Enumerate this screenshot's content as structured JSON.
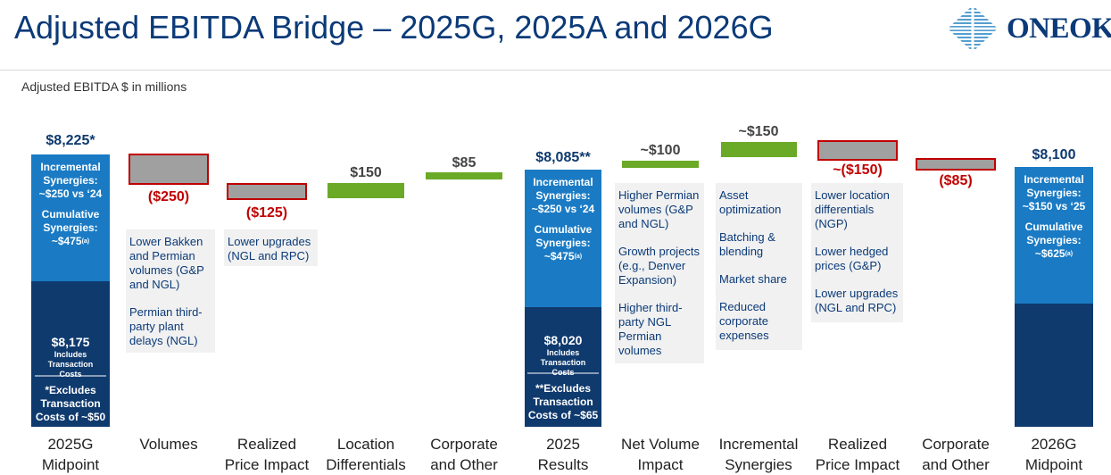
{
  "header": {
    "title": "Adjusted EBITDA Bridge – 2025G, 2025A and 2026G",
    "logo_text": "ONEOK",
    "subtitle": "Adjusted EBITDA $ in millions"
  },
  "colors": {
    "navy": "#0f3a6e",
    "blue": "#1a7bc4",
    "green": "#6aaa26",
    "gray": "#a0a0a0",
    "red": "#c00000",
    "note_bg": "#f1f1f1"
  },
  "chart_data": {
    "type": "waterfall",
    "categories": [
      "2025G Midpoint",
      "Volumes",
      "Realized Price Impact",
      "Location Differentials",
      "Corporate and Other",
      "2025 Results",
      "Net Volume Impact",
      "Incremental Synergies",
      "Realized Price Impact",
      "Corporate and Other",
      "2026G Midpoint"
    ],
    "values": [
      8225,
      -250,
      -125,
      150,
      85,
      8085,
      100,
      150,
      -150,
      -85,
      8100
    ],
    "value_labels": [
      "$8,225*",
      "($250)",
      "($125)",
      "$150",
      "$85",
      "$8,085**",
      "~$100",
      "~$150",
      "~($150)",
      "($85)",
      "$8,100"
    ],
    "totals": [
      {
        "index": 0,
        "base": 8175,
        "base_label": "$8,175",
        "base_note": "Includes Transaction Costs"
      },
      {
        "index": 5,
        "base": 8020,
        "base_label": "$8,020",
        "base_note": "Includes Transaction Costs"
      },
      {
        "index": 10
      }
    ]
  },
  "columns": {
    "c0": {
      "x1": "2025G",
      "x2": "Midpoint",
      "s1": "Incremental Synergies: ~$250 vs ‘24",
      "s2": "Cumulative Synergies: ~$475",
      "s2_sup": "(a)",
      "base_label": "$8,175",
      "base_note": "Includes Transaction Costs",
      "footnote": "*Excludes Transaction Costs of ~$50"
    },
    "c1": {
      "x1": "Volumes",
      "note1": "Lower Bakken and Permian volumes (G&P and NGL)",
      "note2": "Permian third-party plant delays (NGL)"
    },
    "c2": {
      "x1": "Realized",
      "x2": "Price Impact",
      "note1": "Lower upgrades (NGL and RPC)"
    },
    "c3": {
      "x1": "Location",
      "x2": "Differentials"
    },
    "c4": {
      "x1": "Corporate",
      "x2": "and Other"
    },
    "c5": {
      "x1": "2025",
      "x2": "Results",
      "s1": "Incremental Synergies: ~$250 vs ‘24",
      "s2": "Cumulative Synergies: ~$475",
      "s2_sup": "(a)",
      "base_label": "$8,020",
      "base_note": "Includes Transaction Costs",
      "footnote": "**Excludes Transaction Costs of ~$65"
    },
    "c6": {
      "x1": "Net Volume",
      "x2": "Impact",
      "note1": "Higher Permian volumes (G&P and NGL)",
      "note2": "Growth projects (e.g., Denver Expansion)",
      "note3": "Higher third-party NGL Permian volumes"
    },
    "c7": {
      "x1": "Incremental",
      "x2": "Synergies",
      "note1": "Asset optimization",
      "note2": "Batching & blending",
      "note3": "Market share",
      "note4": "Reduced corporate expenses"
    },
    "c8": {
      "x1": "Realized",
      "x2": "Price Impact",
      "note1": "Lower location differentials (NGP)",
      "note2": "Lower hedged prices (G&P)",
      "note3": "Lower upgrades (NGL and RPC)"
    },
    "c9": {
      "x1": "Corporate",
      "x2": "and Other"
    },
    "c10": {
      "x1": "2026G",
      "x2": "Midpoint",
      "s1": "Incremental Synergies: ~$150 vs ‘25",
      "s2": "Cumulative Synergies: ~$625",
      "s2_sup": "(a)"
    }
  }
}
